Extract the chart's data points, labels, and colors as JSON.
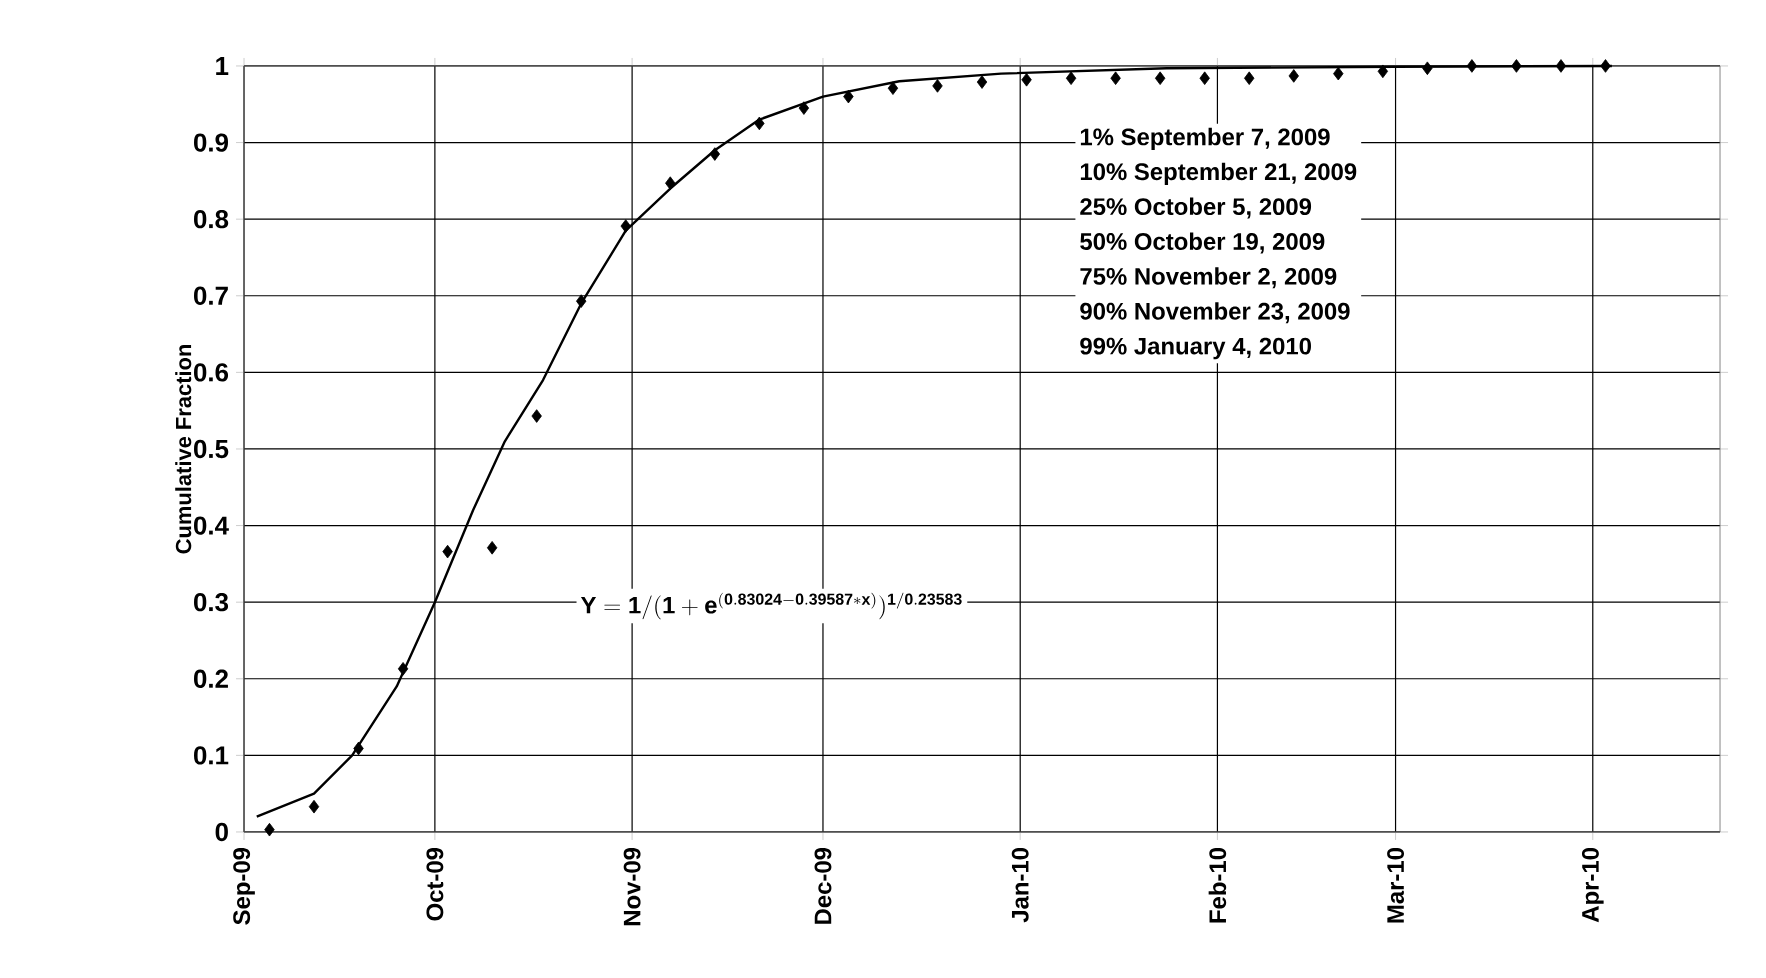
{
  "chart_data": {
    "type": "scatter",
    "ylabel": "Cumulative Fraction",
    "xlim": [
      "2009-09-01",
      "2010-04-21"
    ],
    "ylim": [
      0,
      1
    ],
    "xticks": [
      {
        "value": "2009-09-01",
        "label": "Sep-09"
      },
      {
        "value": "2009-10-01",
        "label": "Oct-09"
      },
      {
        "value": "2009-11-01",
        "label": "Nov-09"
      },
      {
        "value": "2009-12-01",
        "label": "Dec-09"
      },
      {
        "value": "2010-01-01",
        "label": "Jan-10"
      },
      {
        "value": "2010-02-01",
        "label": "Feb-10"
      },
      {
        "value": "2010-03-01",
        "label": "Mar-10"
      },
      {
        "value": "2010-04-01",
        "label": "Apr-10"
      }
    ],
    "yticks": [
      0,
      0.1,
      0.2,
      0.3,
      0.4,
      0.5,
      0.6,
      0.7,
      0.8,
      0.9,
      1
    ],
    "grid": true,
    "series": [
      {
        "marker": "diamond",
        "color": "#000000",
        "x": [
          "2009-09-05",
          "2009-09-12",
          "2009-09-19",
          "2009-09-26",
          "2009-10-03",
          "2009-10-10",
          "2009-10-17",
          "2009-10-24",
          "2009-10-31",
          "2009-11-07",
          "2009-11-14",
          "2009-11-21",
          "2009-11-28",
          "2009-12-05",
          "2009-12-12",
          "2009-12-19",
          "2009-12-26",
          "2010-01-02",
          "2010-01-09",
          "2010-01-16",
          "2010-01-23",
          "2010-01-30",
          "2010-02-06",
          "2010-02-13",
          "2010-02-20",
          "2010-02-27",
          "2010-03-06",
          "2010-03-13",
          "2010-03-20",
          "2010-03-27",
          "2010-04-03"
        ],
        "values": [
          0.003,
          0.033,
          0.109,
          0.213,
          0.366,
          0.371,
          0.543,
          0.693,
          0.791,
          0.847,
          0.885,
          0.925,
          0.945,
          0.96,
          0.971,
          0.974,
          0.979,
          0.982,
          0.984,
          0.984,
          0.984,
          0.984,
          0.984,
          0.987,
          0.99,
          0.993,
          0.997,
          1.0,
          1.0,
          1.0,
          1.0
        ]
      },
      {
        "type": "line",
        "marker": "none",
        "line_style": "solid",
        "color": "#000000",
        "x": [
          "2009-09-03",
          "2009-09-12",
          "2009-09-18",
          "2009-09-25",
          "2009-10-01",
          "2009-10-07",
          "2009-10-12",
          "2009-10-18",
          "2009-10-24",
          "2009-10-31",
          "2009-11-07",
          "2009-11-14",
          "2009-11-21",
          "2009-12-01",
          "2009-12-13",
          "2009-12-29",
          "2010-01-24",
          "2010-03-01",
          "2010-04-04"
        ],
        "values": [
          0.02,
          0.05,
          0.1,
          0.19,
          0.3,
          0.42,
          0.51,
          0.59,
          0.69,
          0.785,
          0.84,
          0.89,
          0.93,
          0.96,
          0.98,
          0.99,
          0.997,
          0.999,
          1.0
        ]
      }
    ],
    "annotations": [
      "1% September 7, 2009",
      "10% September 21, 2009",
      "25% October 5, 2009",
      "50% October 19, 2009",
      "75% November 2, 2009",
      "90% November 23, 2009",
      "99% January 4, 2010",
      "\\mathbf{Y=1/(1+e^{(0.83024-0.39587*x)})^{1/0.23583}}"
    ]
  }
}
